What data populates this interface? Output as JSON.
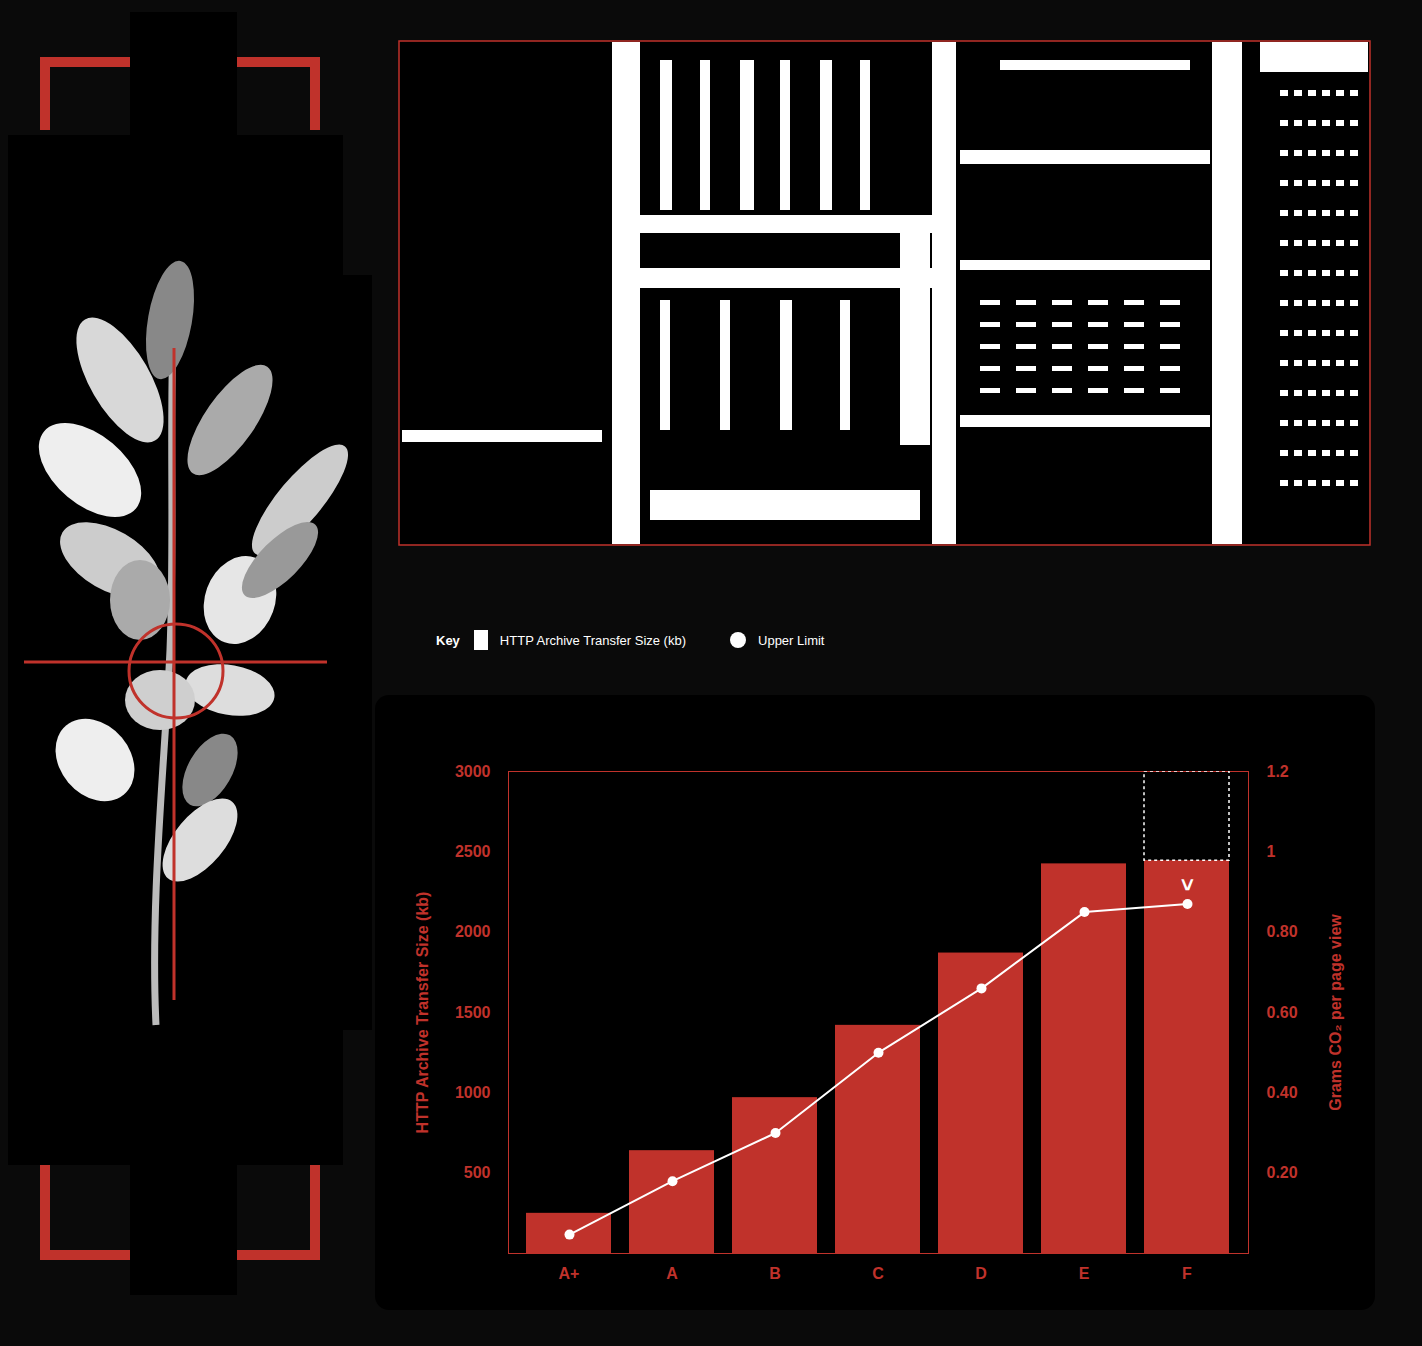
{
  "chart_data": {
    "type": "bar",
    "legend": "top",
    "legend_title": "Key",
    "categories": [
      "A+",
      "A",
      "B",
      "C",
      "D",
      "E",
      "F"
    ],
    "series": [
      {
        "name": "HTTP Archive Transfer Size (kb)",
        "type": "bar",
        "color": "#c0322b",
        "values": [
          250,
          640,
          970,
          1420,
          1870,
          2425,
          2445
        ]
      },
      {
        "name": "Upper Limit",
        "type": "line",
        "axis": "y2",
        "color": "#ffffff",
        "marker": "circle",
        "values": [
          0.047,
          0.18,
          0.3,
          0.5,
          0.66,
          0.85,
          0.87
        ]
      }
    ],
    "ylabel": "HTTP Archive Transfer Size (kb)",
    "y2label": "Grams CO₂ per page view",
    "ylim": [
      0,
      3000
    ],
    "yticks": [
      500,
      1000,
      1500,
      2000,
      2500,
      3000
    ],
    "y2lim": [
      0,
      1.2
    ],
    "y2ticks": [
      {
        "value": 0.2,
        "label": "0.20"
      },
      {
        "value": 0.4,
        "label": "0.40"
      },
      {
        "value": 0.6,
        "label": "0.60"
      },
      {
        "value": 0.8,
        "label": "0.80"
      },
      1,
      1.2
    ],
    "open_bar": {
      "category": "F",
      "to": 3000
    },
    "annotations": [
      {
        "category": "F",
        "text": ">"
      }
    ],
    "grid": false
  }
}
